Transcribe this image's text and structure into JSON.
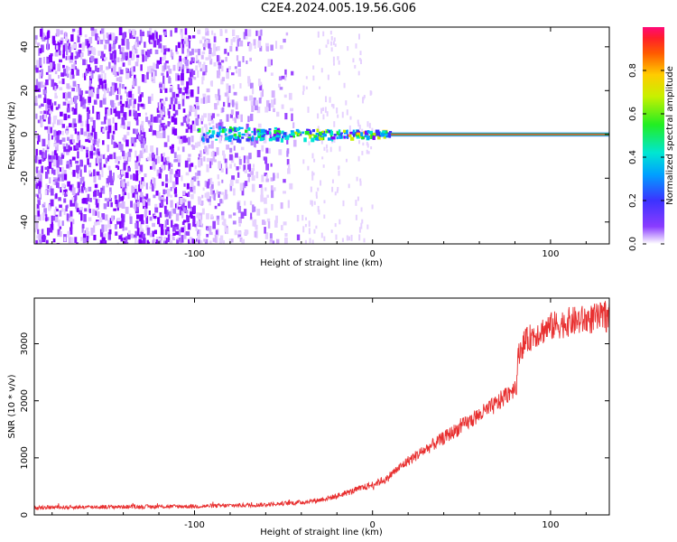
{
  "title": "C2E4.2024.005.19.56.G06",
  "colors": {
    "scatter_purple": "#7f00ff",
    "light_purple": "#d6b3ff",
    "snr_line": "#e83030",
    "axis": "#000000"
  },
  "chart_data": [
    {
      "type": "heatmap",
      "xlabel": "Height of straight line (km)",
      "ylabel": "Frequency (Hz)",
      "xlim": [
        -190,
        133
      ],
      "ylim": [
        -50,
        49
      ],
      "xticks": [
        -100,
        0,
        100
      ],
      "yticks": [
        -40,
        -20,
        0,
        20,
        40
      ],
      "xtick_labels": [
        "-100",
        "0",
        "100"
      ],
      "ytick_labels": [
        "-40",
        "-20",
        "0",
        "20",
        "40"
      ],
      "colorbar": {
        "label": "Normalized spectral amplitude",
        "range": [
          0,
          1
        ],
        "ticks": [
          0.0,
          0.2,
          0.4,
          0.6,
          0.8
        ],
        "tick_labels": [
          "0.0",
          "0.2",
          "0.4",
          "0.6",
          "0.8"
        ],
        "colormap": "rainbow (purple-blue-cyan-green-yellow-orange-red-magenta)"
      },
      "features": [
        {
          "name": "scattered noise",
          "x_range": [
            -190,
            -40
          ],
          "freq_range": [
            -50,
            49
          ],
          "amplitude": 0.05
        },
        {
          "name": "carrier line",
          "x_range": [
            -100,
            133
          ],
          "freq": 0,
          "amplitude_start": 0.3,
          "amplitude_end": 0.9
        }
      ],
      "grid": false
    },
    {
      "type": "line",
      "xlabel": "Height of straight line (km)",
      "ylabel": "SNR (10 * v/v)",
      "xlim": [
        -190,
        133
      ],
      "ylim": [
        0,
        3800
      ],
      "xticks": [
        -100,
        0,
        100
      ],
      "yticks": [
        0,
        1000,
        2000,
        3000
      ],
      "xtick_labels": [
        "-100",
        "0",
        "100"
      ],
      "ytick_labels": [
        "0",
        "1000",
        "2000",
        "3000"
      ],
      "series": [
        {
          "x": [
            -190,
            -150,
            -100,
            -60,
            -40,
            -30,
            -20,
            -10,
            0,
            5,
            8,
            10,
            20,
            40,
            60,
            70,
            80,
            81,
            82,
            85,
            90,
            100,
            110,
            120,
            133
          ],
          "values": [
            130,
            140,
            150,
            180,
            220,
            260,
            330,
            430,
            530,
            600,
            620,
            700,
            950,
            1350,
            1750,
            1950,
            2250,
            2300,
            2850,
            3000,
            3150,
            3300,
            3380,
            3420,
            3480
          ]
        }
      ],
      "grid": false
    }
  ]
}
